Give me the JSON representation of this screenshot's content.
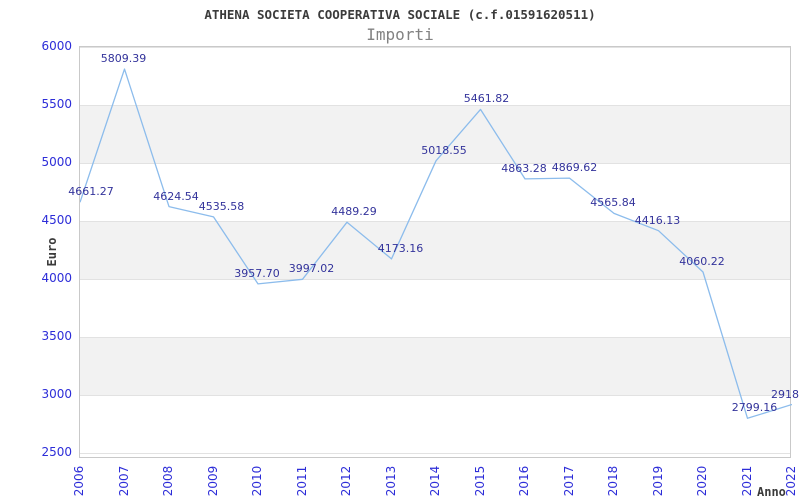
{
  "header": {
    "title": "ATHENA SOCIETA COOPERATIVA SOCIALE (c.f.01591620511)",
    "subtitle": "Importi"
  },
  "chart_data": {
    "type": "line",
    "title": "ATHENA SOCIETA COOPERATIVA SOCIALE (c.f.01591620511)",
    "subtitle": "Importi",
    "xlabel": "Anno",
    "ylabel": "Euro",
    "categories": [
      "2006",
      "2007",
      "2008",
      "2009",
      "2010",
      "2011",
      "2012",
      "2013",
      "2014",
      "2015",
      "2016",
      "2017",
      "2018",
      "2019",
      "2020",
      "2021",
      "2022"
    ],
    "values": [
      4661.27,
      5809.39,
      4624.54,
      4535.58,
      3957.7,
      3997.02,
      4489.29,
      4173.16,
      5018.55,
      5461.82,
      4863.28,
      4869.62,
      4565.84,
      4416.13,
      4060.22,
      2799.16,
      2918.0
    ],
    "point_labels": [
      "4661.27",
      "5809.39",
      "4624.54",
      "4535.58",
      "3957.70",
      "3997.02",
      "4489.29",
      "4173.16",
      "5018.55",
      "5461.82",
      "4863.28",
      "4869.62",
      "4565.84",
      "4416.13",
      "4060.22",
      "2799.16",
      "2918.0"
    ],
    "ylim": [
      2500,
      6000
    ],
    "yticks": [
      6000,
      5500,
      5000,
      4500,
      4000,
      3500,
      3000,
      2500
    ],
    "grid": "horizontal gridlines with alternating shaded bands",
    "legend": "none",
    "colors": {
      "line": "#8cbcec",
      "point_label": "#33339b",
      "tick_label": "#2d2dd8",
      "title": "#3b3b3b",
      "subtitle": "#828282",
      "band": "#f2f2f2",
      "gridline": "#e2e2e2",
      "plot_border": "#c9c9c9",
      "background": "#ffffff"
    }
  }
}
